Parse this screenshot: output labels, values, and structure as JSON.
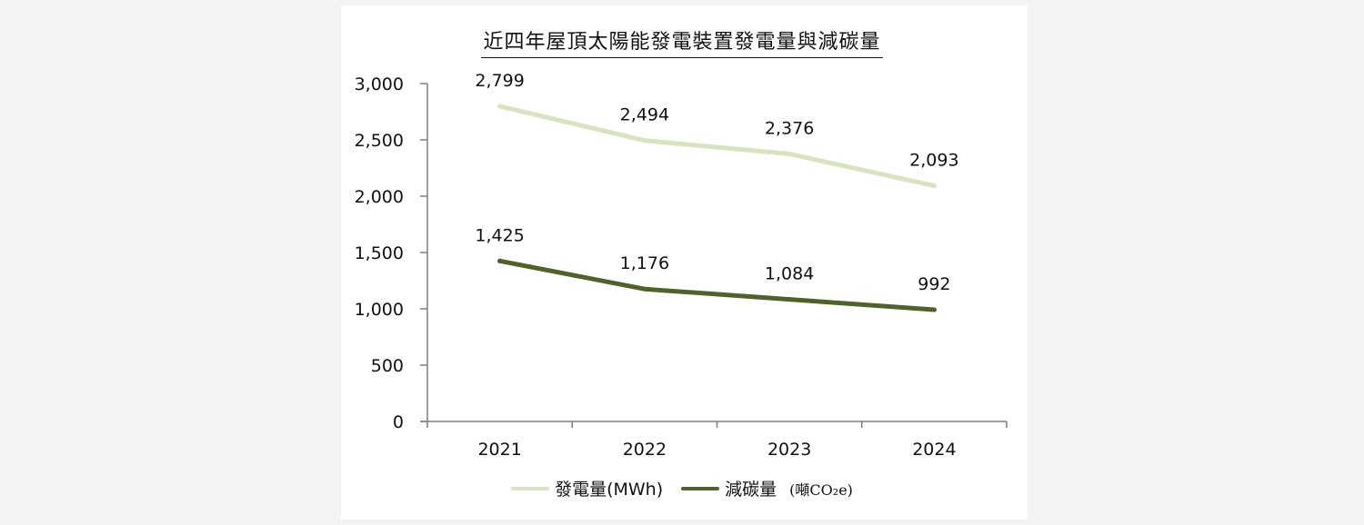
{
  "chart_data": {
    "type": "line",
    "title": "近四年屋頂太陽能發電裝置發電量與減碳量",
    "categories": [
      "2021",
      "2022",
      "2023",
      "2024"
    ],
    "series": [
      {
        "name": "發電量(MWh)",
        "values": [
          2799,
          2494,
          2376,
          2093
        ],
        "color": "#d7e4bf",
        "labels": [
          "2,799",
          "2,494",
          "2,376",
          "2,093"
        ]
      },
      {
        "name": "減碳量",
        "values": [
          1425,
          1176,
          1084,
          992
        ],
        "color": "#4f6228",
        "labels": [
          "1,425",
          "1,176",
          "1,084",
          "992"
        ]
      }
    ],
    "unit_note": "(噸CO₂e)",
    "ylim": [
      0,
      3000
    ],
    "yticks": [
      0,
      500,
      1000,
      1500,
      2000,
      2500,
      3000
    ],
    "ytick_labels": [
      "0",
      "500",
      "1,000",
      "1,500",
      "2,000",
      "2,500",
      "3,000"
    ],
    "grid": false,
    "legend": "bottom"
  }
}
